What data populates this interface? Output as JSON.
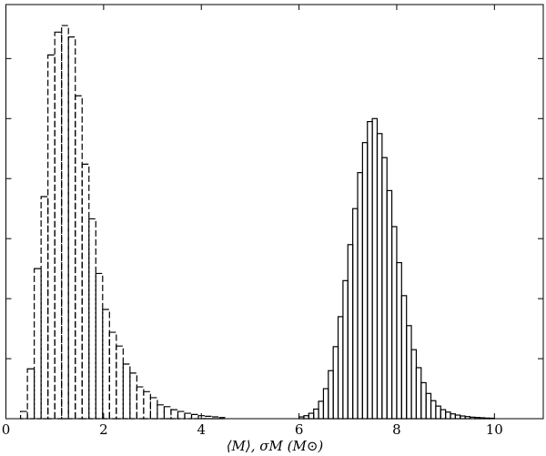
{
  "chart_data": {
    "type": "histogram",
    "xlabel": "⟨M⟩, σM (M⊙)",
    "xlim": [
      0,
      11
    ],
    "xticks": [
      0,
      2,
      4,
      6,
      8,
      10
    ],
    "ylim": [
      0,
      6.9
    ],
    "yticks": [
      0,
      1,
      2,
      3,
      4,
      5,
      6
    ],
    "color": "#000000",
    "series": [
      {
        "linestyle": "dashed",
        "bins": [
          0.3,
          0.44,
          0.58,
          0.72,
          0.86,
          1.0,
          1.14,
          1.28,
          1.42,
          1.56,
          1.7,
          1.84,
          1.98,
          2.12,
          2.26,
          2.4,
          2.54,
          2.68,
          2.82,
          2.96,
          3.1,
          3.24,
          3.38,
          3.52,
          3.66,
          3.8,
          3.94,
          4.08,
          4.22,
          4.36,
          4.5
        ],
        "values": [
          0.12,
          0.83,
          2.5,
          3.7,
          6.06,
          6.44,
          6.55,
          6.36,
          5.38,
          4.24,
          3.33,
          2.42,
          1.82,
          1.44,
          1.21,
          0.91,
          0.76,
          0.53,
          0.45,
          0.35,
          0.23,
          0.2,
          0.15,
          0.12,
          0.09,
          0.07,
          0.05,
          0.04,
          0.03,
          0.02
        ]
      },
      {
        "linestyle": "solid",
        "bins": [
          6.0,
          6.1,
          6.2,
          6.3,
          6.4,
          6.5,
          6.6,
          6.7,
          6.8,
          6.9,
          7.0,
          7.1,
          7.2,
          7.3,
          7.4,
          7.5,
          7.6,
          7.7,
          7.8,
          7.9,
          8.0,
          8.1,
          8.2,
          8.3,
          8.4,
          8.5,
          8.6,
          8.7,
          8.8,
          8.9,
          9.0,
          9.1,
          9.2,
          9.3,
          9.4,
          9.5,
          9.6,
          9.7,
          9.8,
          9.9,
          10.0
        ],
        "values": [
          0.03,
          0.05,
          0.09,
          0.16,
          0.29,
          0.5,
          0.8,
          1.2,
          1.7,
          2.3,
          2.9,
          3.5,
          4.1,
          4.6,
          4.95,
          5.0,
          4.75,
          4.35,
          3.8,
          3.2,
          2.6,
          2.05,
          1.55,
          1.15,
          0.85,
          0.6,
          0.42,
          0.3,
          0.21,
          0.15,
          0.11,
          0.08,
          0.06,
          0.045,
          0.035,
          0.025,
          0.02,
          0.015,
          0.01,
          0.008
        ]
      }
    ]
  }
}
